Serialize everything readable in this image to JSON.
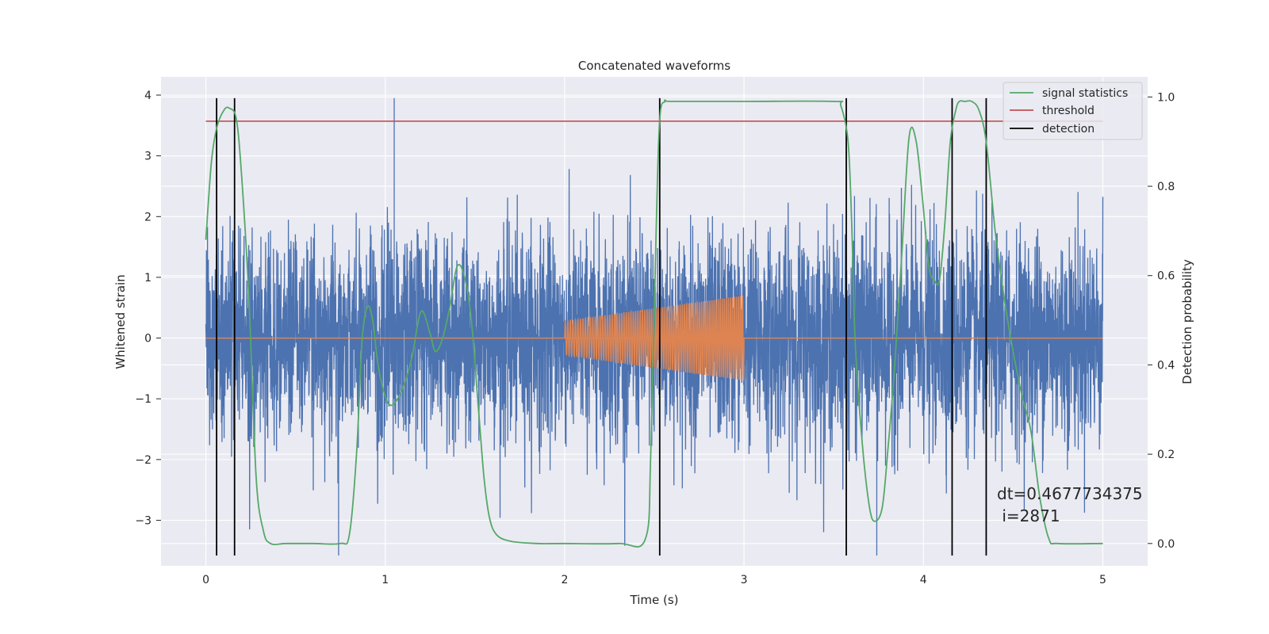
{
  "chart_data": {
    "type": "line",
    "title": "Concatenated waveforms",
    "xlabel": "Time (s)",
    "ylabel": "Whitened strain",
    "ylabel_right": "Detection probability",
    "xlim": [
      -0.25,
      5.25
    ],
    "ylim": [
      -3.75,
      4.3
    ],
    "ylim_right": [
      -0.05,
      1.045
    ],
    "x_ticks": [
      0,
      1,
      2,
      3,
      4,
      5
    ],
    "y_ticks": [
      -3,
      -2,
      -1,
      0,
      1,
      2,
      3,
      4
    ],
    "y_ticks_right": [
      0.0,
      0.2,
      0.4,
      0.6,
      0.8,
      1.0
    ],
    "grid": true,
    "legend_position": "top-right",
    "colors": {
      "background": "#eaeaf2",
      "strain": "#4c72b0",
      "injected": "#dd8452",
      "signal_statistics": "#55a868",
      "threshold": "#c44e52",
      "detection": "#000000"
    },
    "series": [
      {
        "name": "",
        "kind": "whitened-strain",
        "x_range": [
          0,
          5
        ],
        "approx_std": 0.85,
        "min": -3.58,
        "max": 3.95
      },
      {
        "name": "",
        "kind": "injected-waveform",
        "x_range": [
          0,
          5
        ],
        "chirp_x_range": [
          2,
          3
        ],
        "amplitude_start": 0.28,
        "amplitude_end": 0.7
      },
      {
        "name": "signal statistics",
        "axis": "right",
        "x": [
          0.0,
          0.03,
          0.06,
          0.1,
          0.13,
          0.17,
          0.2,
          0.24,
          0.28,
          0.32,
          0.36,
          0.45,
          0.6,
          0.75,
          0.8,
          0.84,
          0.87,
          0.9,
          0.93,
          0.96,
          1.0,
          1.04,
          1.1,
          1.15,
          1.2,
          1.25,
          1.28,
          1.32,
          1.36,
          1.4,
          1.44,
          1.48,
          1.52,
          1.55,
          1.58,
          1.62,
          1.7,
          1.85,
          2.0,
          2.3,
          2.45,
          2.48,
          2.51,
          2.53,
          2.56,
          2.6,
          3.0,
          3.5,
          3.54,
          3.58,
          3.6,
          3.62,
          3.66,
          3.7,
          3.73,
          3.77,
          3.8,
          3.84,
          3.88,
          3.92,
          3.96,
          4.0,
          4.03,
          4.06,
          4.09,
          4.12,
          4.15,
          4.18,
          4.2,
          4.23,
          4.27,
          4.31,
          4.35,
          4.4,
          4.45,
          4.5,
          4.55,
          4.6,
          4.65,
          4.7,
          4.75,
          5.0
        ],
        "y": [
          0.68,
          0.85,
          0.93,
          0.97,
          0.975,
          0.95,
          0.82,
          0.55,
          0.15,
          0.03,
          0.0,
          0.0,
          0.0,
          0.0,
          0.02,
          0.2,
          0.45,
          0.53,
          0.5,
          0.4,
          0.33,
          0.31,
          0.35,
          0.42,
          0.52,
          0.47,
          0.43,
          0.46,
          0.53,
          0.62,
          0.6,
          0.5,
          0.3,
          0.15,
          0.06,
          0.02,
          0.005,
          0.0,
          0.0,
          0.0,
          0.01,
          0.2,
          0.7,
          0.95,
          0.99,
          0.99,
          0.99,
          0.99,
          0.98,
          0.9,
          0.72,
          0.45,
          0.22,
          0.08,
          0.05,
          0.08,
          0.2,
          0.4,
          0.65,
          0.91,
          0.9,
          0.75,
          0.62,
          0.59,
          0.59,
          0.72,
          0.9,
          0.97,
          0.99,
          0.99,
          0.99,
          0.97,
          0.9,
          0.7,
          0.55,
          0.43,
          0.33,
          0.25,
          0.1,
          0.01,
          0.0,
          0.0
        ]
      },
      {
        "name": "threshold",
        "axis": "left",
        "x": [
          0,
          5
        ],
        "y": [
          3.57,
          3.57
        ]
      },
      {
        "name": "detection",
        "axis": "left",
        "x": [
          0.06,
          0.16,
          2.53,
          3.57,
          4.16,
          4.35
        ],
        "y_range": [
          -3.58,
          3.95
        ]
      }
    ],
    "annotation": {
      "line1": "dt=0.4677734375",
      "line2": " i=2871",
      "x": 4.5,
      "y": -3.27
    }
  }
}
